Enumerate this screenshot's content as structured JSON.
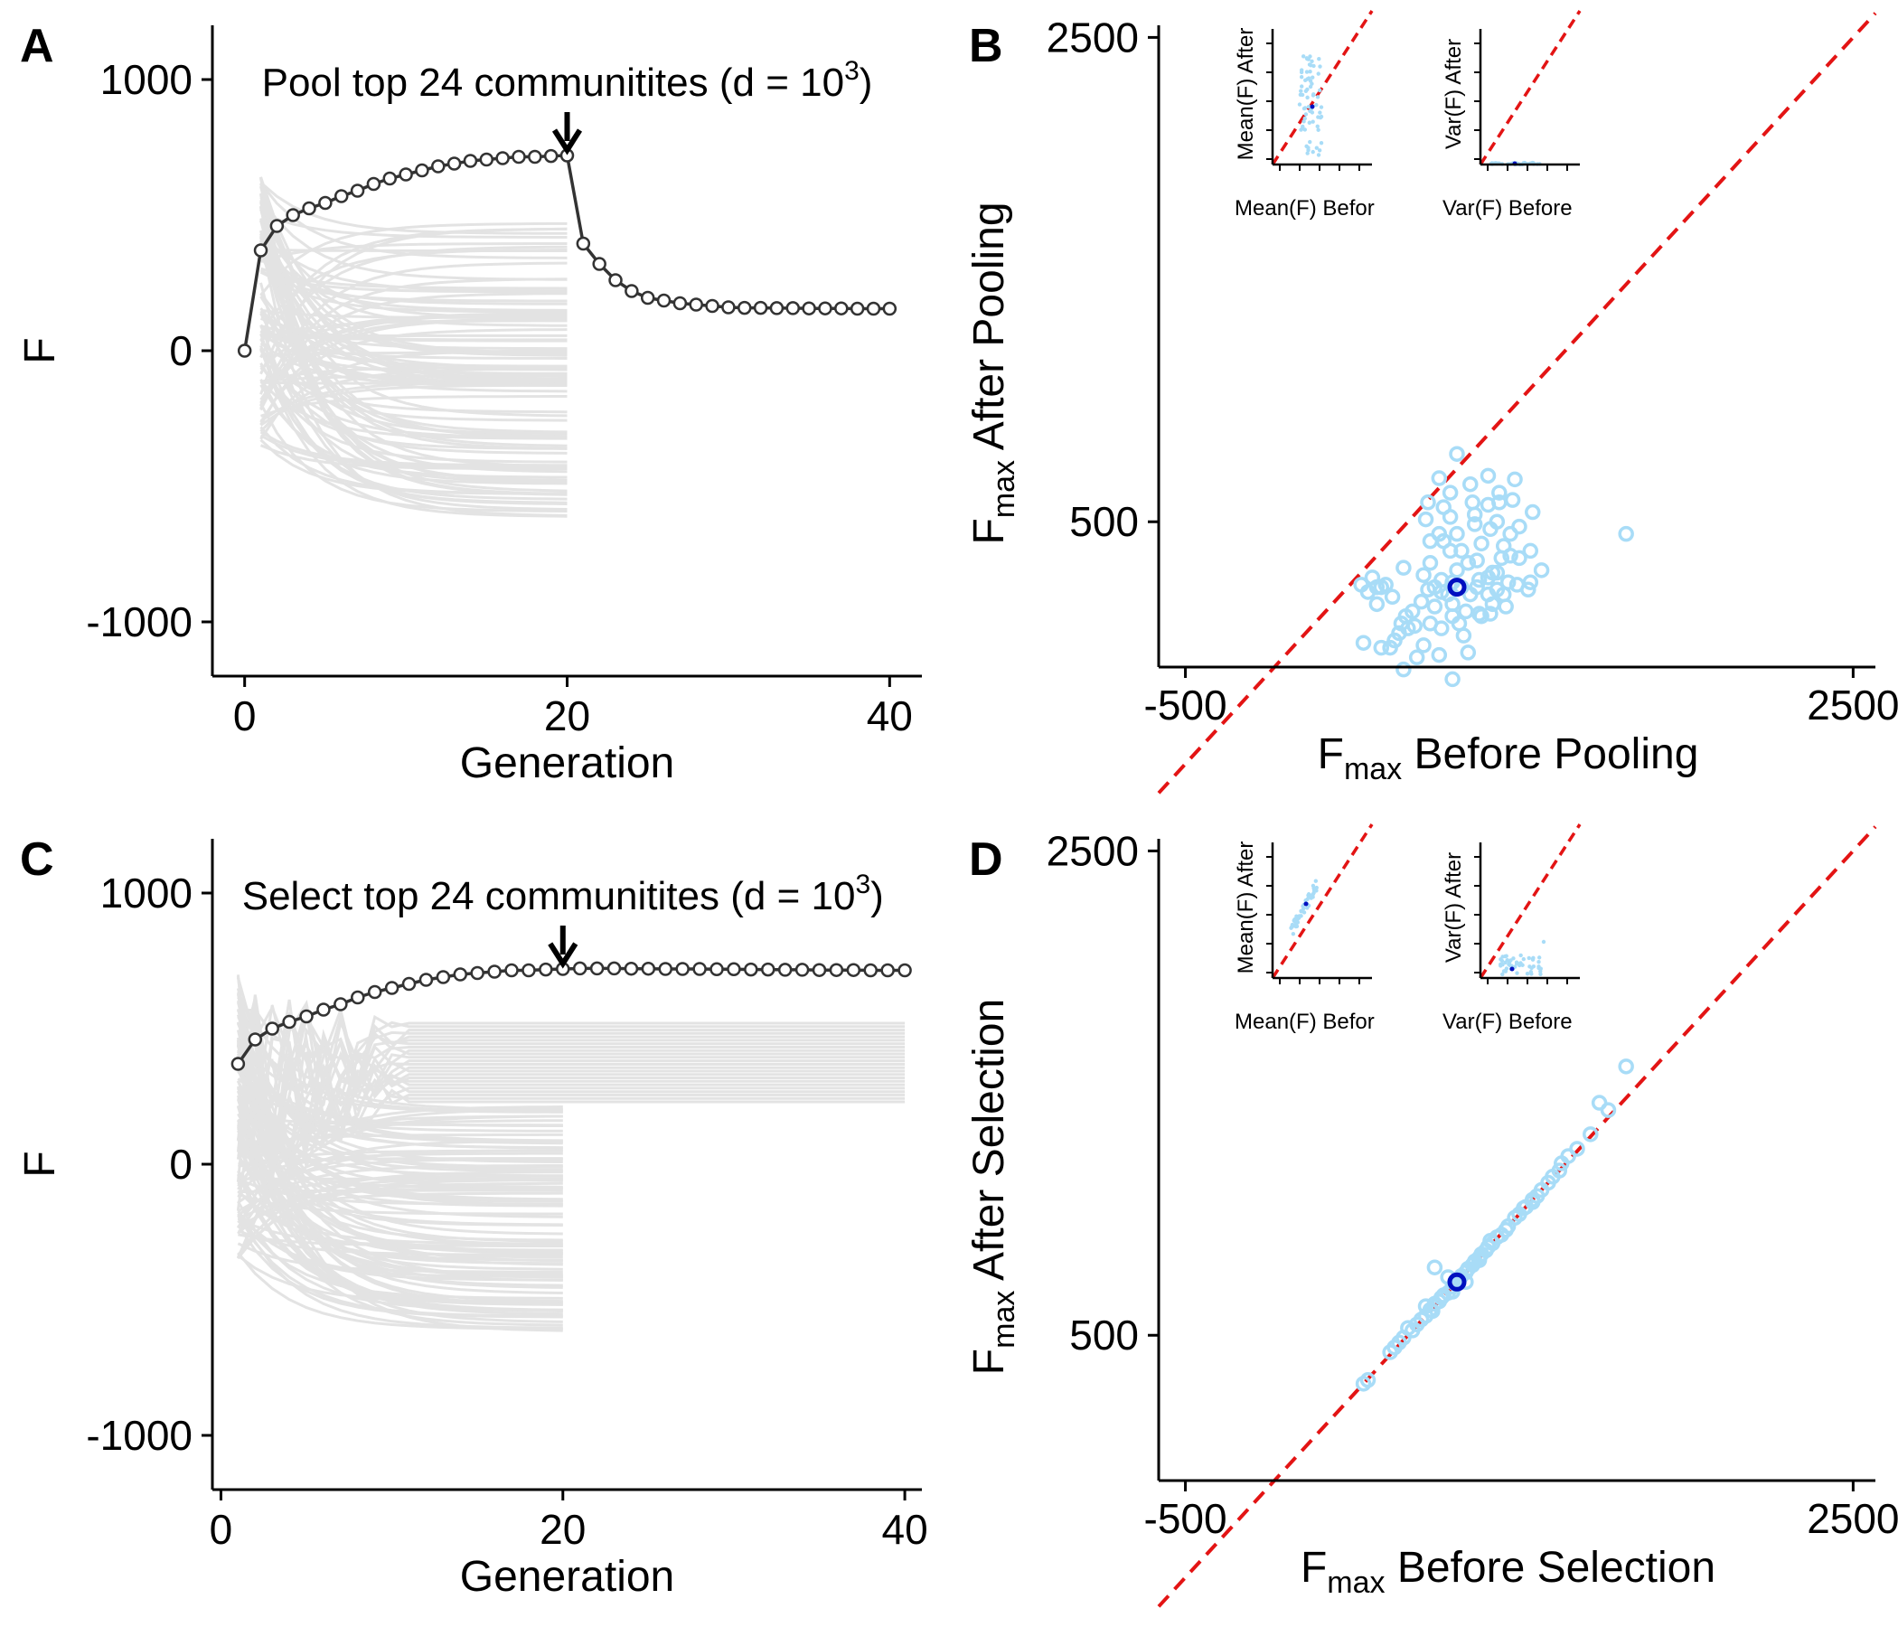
{
  "chart_data": [
    {
      "id": "A",
      "panel_label": "A",
      "type": "line",
      "xlabel": "Generation",
      "ylabel": "F",
      "xlim": [
        -2,
        42
      ],
      "ylim": [
        -1200,
        1200
      ],
      "x_ticks": [
        "0",
        "20",
        "40"
      ],
      "x_tick_values": [
        0,
        20,
        40
      ],
      "y_ticks": [
        "1000",
        "0",
        "-1000"
      ],
      "y_tick_values": [
        1000,
        0,
        -1000
      ],
      "annotation": {
        "text": "Pool top 24 communitites (d = 10",
        "sup": "3",
        "close": ")",
        "x": 20
      },
      "highlight_series": {
        "x": [
          0,
          1,
          2,
          3,
          4,
          5,
          6,
          7,
          8,
          9,
          10,
          11,
          12,
          13,
          14,
          15,
          16,
          17,
          18,
          19,
          20,
          21,
          22,
          23,
          24,
          25,
          26,
          27,
          28,
          29,
          30,
          31,
          32,
          33,
          34,
          35,
          36,
          37,
          38,
          39,
          40
        ],
        "y": [
          0,
          370,
          460,
          500,
          525,
          545,
          570,
          590,
          615,
          635,
          650,
          665,
          680,
          690,
          700,
          705,
          710,
          715,
          715,
          718,
          720,
          395,
          320,
          260,
          220,
          195,
          185,
          175,
          170,
          165,
          160,
          158,
          158,
          157,
          157,
          156,
          156,
          156,
          155,
          155,
          155
        ]
      },
      "background_series": {
        "count": 100,
        "x_range": [
          1,
          20
        ],
        "final_range": [
          -620,
          500
        ],
        "color": "#e3e3e3"
      }
    },
    {
      "id": "B",
      "panel_label": "B",
      "type": "scatter",
      "xlabel": "F",
      "xlabel_sub": "max",
      "xlabel_rest": "Before  Pooling",
      "ylabel": "F",
      "ylabel_sub": "max",
      "ylabel_rest": "After  Pooling",
      "xlim": [
        -620,
        2600
      ],
      "ylim": [
        -100,
        2550
      ],
      "x_ticks": [
        "-500",
        "2500"
      ],
      "x_tick_values": [
        -500,
        2500
      ],
      "y_ticks": [
        "2500",
        "500"
      ],
      "y_tick_values": [
        2500,
        500
      ],
      "diagonal": "y = x",
      "highlight_point": {
        "x": 720,
        "y": 230
      },
      "points": [
        [
          720,
          780
        ],
        [
          640,
          680
        ],
        [
          780,
          655
        ],
        [
          860,
          690
        ],
        [
          690,
          620
        ],
        [
          590,
          580
        ],
        [
          910,
          620
        ],
        [
          980,
          675
        ],
        [
          1000,
          480
        ],
        [
          1060,
          540
        ],
        [
          910,
          580
        ],
        [
          790,
          580
        ],
        [
          860,
          570
        ],
        [
          580,
          510
        ],
        [
          480,
          310
        ],
        [
          660,
          560
        ],
        [
          800,
          530
        ],
        [
          970,
          590
        ],
        [
          900,
          500
        ],
        [
          960,
          450
        ],
        [
          690,
          520
        ],
        [
          800,
          490
        ],
        [
          870,
          470
        ],
        [
          720,
          450
        ],
        [
          930,
          400
        ],
        [
          740,
          380
        ],
        [
          810,
          340
        ],
        [
          640,
          450
        ],
        [
          690,
          380
        ],
        [
          600,
          420
        ],
        [
          660,
          420
        ],
        [
          830,
          410
        ],
        [
          770,
          330
        ],
        [
          880,
          290
        ],
        [
          650,
          260
        ],
        [
          720,
          300
        ],
        [
          600,
          330
        ],
        [
          570,
          280
        ],
        [
          590,
          220
        ],
        [
          650,
          210
        ],
        [
          700,
          250
        ],
        [
          740,
          230
        ],
        [
          810,
          230
        ],
        [
          820,
          260
        ],
        [
          860,
          270
        ],
        [
          900,
          290
        ],
        [
          920,
          350
        ],
        [
          960,
          360
        ],
        [
          1000,
          350
        ],
        [
          1050,
          380
        ],
        [
          1100,
          300
        ],
        [
          1050,
          250
        ],
        [
          950,
          250
        ],
        [
          900,
          220
        ],
        [
          860,
          200
        ],
        [
          780,
          200
        ],
        [
          700,
          160
        ],
        [
          620,
          150
        ],
        [
          560,
          170
        ],
        [
          520,
          130
        ],
        [
          490,
          110
        ],
        [
          470,
          80
        ],
        [
          500,
          60
        ],
        [
          460,
          40
        ],
        [
          440,
          10
        ],
        [
          420,
          -20
        ],
        [
          380,
          230
        ],
        [
          340,
          270
        ],
        [
          400,
          240
        ],
        [
          430,
          190
        ],
        [
          360,
          160
        ],
        [
          600,
          80
        ],
        [
          530,
          70
        ],
        [
          650,
          60
        ],
        [
          750,
          30
        ],
        [
          830,
          110
        ],
        [
          870,
          120
        ],
        [
          930,
          200
        ],
        [
          990,
          240
        ],
        [
          1040,
          220
        ],
        [
          700,
          110
        ],
        [
          730,
          80
        ],
        [
          640,
          -50
        ],
        [
          570,
          -10
        ],
        [
          770,
          -40
        ],
        [
          700,
          -150
        ],
        [
          480,
          -110
        ],
        [
          540,
          -60
        ],
        [
          380,
          -20
        ],
        [
          300,
          0
        ],
        [
          290,
          240
        ],
        [
          320,
          210
        ],
        [
          360,
          230
        ],
        [
          880,
          160
        ],
        [
          940,
          150
        ],
        [
          820,
          120
        ],
        [
          760,
          130
        ],
        [
          620,
          230
        ],
        [
          680,
          200
        ],
        [
          1480,
          450
        ]
      ],
      "point_color": "#a8dcf7",
      "highlight_color": "#0010c0",
      "insets": [
        {
          "xlabel_pre": "Mean",
          "xlabel_arg": "F",
          "xlabel_post": "Befor",
          "ylabel_pre": "Mean",
          "ylabel_arg": "F",
          "ylabel_post": "After",
          "kind": "mean"
        },
        {
          "xlabel_pre": "Var",
          "xlabel_arg": "F",
          "xlabel_post": "Before",
          "ylabel_pre": "Var",
          "ylabel_arg": "F",
          "ylabel_post": "After",
          "kind": "var-flat"
        }
      ]
    },
    {
      "id": "C",
      "panel_label": "C",
      "type": "line",
      "xlabel": "Generation",
      "ylabel": "F",
      "xlim": [
        -0.5,
        41
      ],
      "ylim": [
        -1200,
        1200
      ],
      "x_ticks": [
        "0",
        "20",
        "40"
      ],
      "x_tick_values": [
        0,
        20,
        40
      ],
      "y_ticks": [
        "1000",
        "0",
        "-1000"
      ],
      "y_tick_values": [
        1000,
        0,
        -1000
      ],
      "annotation": {
        "text": "Select top 24 communitites (d = 10",
        "sup": "3",
        "close": ")",
        "x": 20
      },
      "highlight_series": {
        "x": [
          1,
          2,
          3,
          4,
          5,
          6,
          7,
          8,
          9,
          10,
          11,
          12,
          13,
          14,
          15,
          16,
          17,
          18,
          19,
          20,
          21,
          22,
          23,
          24,
          25,
          26,
          27,
          28,
          29,
          30,
          31,
          32,
          33,
          34,
          35,
          36,
          37,
          38,
          39,
          40
        ],
        "y": [
          370,
          460,
          500,
          525,
          545,
          570,
          590,
          615,
          635,
          650,
          665,
          680,
          690,
          700,
          705,
          710,
          715,
          715,
          718,
          720,
          722,
          722,
          722,
          721,
          721,
          720,
          720,
          720,
          719,
          719,
          718,
          718,
          717,
          717,
          716,
          716,
          716,
          715,
          715,
          715
        ]
      },
      "background_series": {
        "count": 100,
        "x_range": [
          1,
          20
        ],
        "final_range": [
          -620,
          220
        ],
        "continued_range": [
          230,
          520
        ],
        "continued_count": 24,
        "color": "#e3e3e3"
      }
    },
    {
      "id": "D",
      "panel_label": "D",
      "type": "scatter",
      "xlabel": "F",
      "xlabel_sub": "max",
      "xlabel_rest": "Before  Selection",
      "ylabel": "F",
      "ylabel_sub": "max",
      "ylabel_rest": "After  Selection",
      "xlim": [
        -620,
        2600
      ],
      "ylim": [
        -100,
        2550
      ],
      "x_ticks": [
        "-500",
        "2500"
      ],
      "x_tick_values": [
        -500,
        2500
      ],
      "y_ticks": [
        "2500",
        "500"
      ],
      "y_tick_values": [
        2500,
        500
      ],
      "diagonal": "y = x",
      "highlight_point": {
        "x": 720,
        "y": 720
      },
      "points": [
        [
          300,
          300
        ],
        [
          320,
          315
        ],
        [
          420,
          430
        ],
        [
          460,
          470
        ],
        [
          480,
          490
        ],
        [
          520,
          520
        ],
        [
          540,
          545
        ],
        [
          560,
          565
        ],
        [
          580,
          580
        ],
        [
          600,
          605
        ],
        [
          610,
          600
        ],
        [
          620,
          630
        ],
        [
          640,
          640
        ],
        [
          650,
          655
        ],
        [
          660,
          665
        ],
        [
          680,
          675
        ],
        [
          700,
          700
        ],
        [
          710,
          715
        ],
        [
          730,
          735
        ],
        [
          740,
          745
        ],
        [
          760,
          760
        ],
        [
          770,
          775
        ],
        [
          790,
          790
        ],
        [
          800,
          805
        ],
        [
          820,
          820
        ],
        [
          830,
          835
        ],
        [
          850,
          850
        ],
        [
          860,
          865
        ],
        [
          880,
          880
        ],
        [
          900,
          905
        ],
        [
          920,
          915
        ],
        [
          950,
          950
        ],
        [
          980,
          985
        ],
        [
          1000,
          1000
        ],
        [
          1030,
          1030
        ],
        [
          1060,
          1060
        ],
        [
          1080,
          1075
        ],
        [
          1100,
          1100
        ],
        [
          1130,
          1130
        ],
        [
          1180,
          1180
        ],
        [
          1190,
          1210
        ],
        [
          1220,
          1240
        ],
        [
          1260,
          1270
        ],
        [
          1480,
          1610
        ],
        [
          1360,
          1460
        ],
        [
          1400,
          1430
        ],
        [
          1320,
          1330
        ],
        [
          620,
          780
        ],
        [
          580,
          620
        ],
        [
          700,
          680
        ],
        [
          680,
          740
        ],
        [
          760,
          720
        ],
        [
          500,
          530
        ],
        [
          440,
          450
        ],
        [
          820,
          810
        ],
        [
          870,
          890
        ],
        [
          940,
          935
        ],
        [
          1020,
          1025
        ],
        [
          1060,
          1050
        ],
        [
          1150,
          1155
        ]
      ],
      "point_color": "#a8dcf7",
      "highlight_color": "#0010c0",
      "insets": [
        {
          "xlabel_pre": "Mean",
          "xlabel_arg": "F",
          "xlabel_post": "Befor",
          "ylabel_pre": "Mean",
          "ylabel_arg": "F",
          "ylabel_post": "After",
          "kind": "mean-diag"
        },
        {
          "xlabel_pre": "Var",
          "xlabel_arg": "F",
          "xlabel_post": "Before",
          "ylabel_pre": "Var",
          "ylabel_arg": "F",
          "ylabel_post": "After",
          "kind": "var-cluster"
        }
      ]
    }
  ]
}
